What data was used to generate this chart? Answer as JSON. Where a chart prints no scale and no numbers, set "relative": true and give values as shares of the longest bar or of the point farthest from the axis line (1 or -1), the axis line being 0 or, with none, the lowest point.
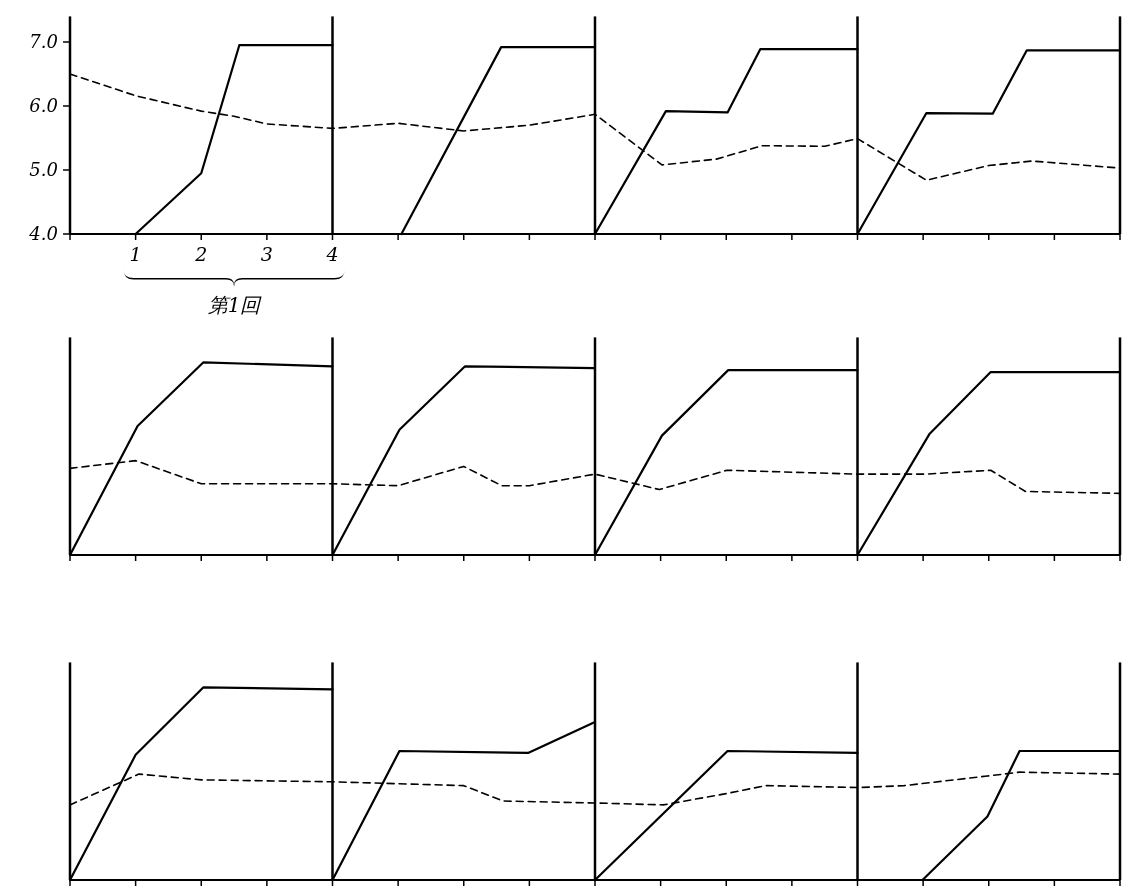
{
  "chart_data": [
    {
      "type": "line",
      "xlim": [
        0,
        16
      ],
      "xticks": [
        {
          "value": 0,
          "label": null
        },
        1,
        2,
        3,
        4,
        {
          "value": 5,
          "label": null
        },
        {
          "value": 6,
          "label": null
        },
        {
          "value": 7,
          "label": null
        },
        {
          "value": 8,
          "label": null
        },
        {
          "value": 9,
          "label": null
        },
        {
          "value": 10,
          "label": null
        },
        {
          "value": 11,
          "label": null
        },
        {
          "value": 12,
          "label": null
        },
        {
          "value": 13,
          "label": null
        },
        {
          "value": 14,
          "label": null
        },
        {
          "value": 15,
          "label": null
        },
        {
          "value": 16,
          "label": null
        }
      ],
      "xlabel": "第1回",
      "ylim": [
        4,
        7.4
      ],
      "yticks": [
        {
          "value": 4,
          "label": "4.0"
        },
        {
          "value": 5,
          "label": "5.0"
        },
        {
          "value": 6,
          "label": "6.0"
        },
        {
          "value": 7,
          "label": "7.0"
        }
      ],
      "ref_lines": [
        {
          "axis": "x",
          "value": 4
        },
        {
          "axis": "x",
          "value": 8
        },
        {
          "axis": "x",
          "value": 12
        }
      ],
      "series": [
        {
          "color": "#000000",
          "line_style": "solid",
          "x": [
            1,
            2,
            2.58,
            4
          ],
          "values": [
            4.0,
            4.95,
            6.95,
            6.95
          ]
        },
        {
          "color": "#000000",
          "line_style": "solid",
          "x": [
            5.05,
            6.57,
            8
          ],
          "values": [
            4.0,
            6.92,
            6.92
          ]
        },
        {
          "color": "#000000",
          "line_style": "solid",
          "x": [
            8,
            9.08,
            10.02,
            10.52,
            12
          ],
          "values": [
            4.0,
            5.92,
            5.9,
            6.89,
            6.89
          ]
        },
        {
          "color": "#000000",
          "line_style": "solid",
          "x": [
            12,
            13.05,
            14.06,
            14.58,
            16
          ],
          "values": [
            4.0,
            5.89,
            5.88,
            6.87,
            6.87
          ]
        },
        {
          "color": "#000000",
          "line_style": "dashed",
          "x": [
            0,
            1,
            2,
            2.5,
            3,
            4,
            5,
            6,
            7,
            8,
            9.02,
            9.85,
            10.55,
            11.5,
            12,
            13.05,
            14,
            14.66,
            16
          ],
          "values": [
            6.5,
            6.16,
            5.92,
            5.84,
            5.72,
            5.65,
            5.73,
            5.61,
            5.7,
            5.87,
            5.08,
            5.17,
            5.38,
            5.37,
            5.49,
            4.84,
            5.07,
            5.14,
            5.03
          ]
        }
      ]
    },
    {
      "type": "line",
      "relative": true,
      "xlim": [
        0,
        16
      ],
      "xticks": [
        0,
        1,
        2,
        3,
        4,
        5,
        6,
        7,
        8,
        9,
        10,
        11,
        12,
        13,
        14,
        15,
        16
      ],
      "tick_labels": false,
      "ref_lines": [
        {
          "axis": "x",
          "value": 4
        },
        {
          "axis": "x",
          "value": 8
        },
        {
          "axis": "x",
          "value": 12
        }
      ],
      "series": [
        {
          "color": "#000000",
          "line_style": "solid",
          "x": [
            0,
            1.03,
            2.03,
            4
          ],
          "values": [
            0,
            0.67,
            1.0,
            0.98
          ]
        },
        {
          "color": "#000000",
          "line_style": "solid",
          "x": [
            4,
            5.02,
            6.02,
            8
          ],
          "values": [
            0,
            0.65,
            0.98,
            0.97
          ]
        },
        {
          "color": "#000000",
          "line_style": "solid",
          "x": [
            8,
            9.02,
            10.03,
            12
          ],
          "values": [
            0,
            0.62,
            0.96,
            0.96
          ]
        },
        {
          "color": "#000000",
          "line_style": "solid",
          "x": [
            12,
            13.1,
            14.03,
            16
          ],
          "values": [
            0,
            0.63,
            0.95,
            0.95
          ]
        },
        {
          "color": "#000000",
          "line_style": "dashed",
          "x": [
            0,
            1,
            2,
            4,
            5,
            6,
            6.58,
            7,
            8,
            8.98,
            10.01,
            12,
            13.04,
            14.03,
            14.56,
            16
          ],
          "values": [
            0.45,
            0.49,
            0.37,
            0.37,
            0.36,
            0.46,
            0.36,
            0.36,
            0.42,
            0.34,
            0.44,
            0.42,
            0.42,
            0.44,
            0.33,
            0.32
          ]
        }
      ]
    },
    {
      "type": "line",
      "relative": true,
      "xlim": [
        0,
        16
      ],
      "xticks": [
        0,
        1,
        2,
        3,
        4,
        5,
        6,
        7,
        8,
        9,
        10,
        11,
        12,
        13,
        14,
        15,
        16
      ],
      "tick_labels": false,
      "ref_lines": [
        {
          "axis": "x",
          "value": 4
        },
        {
          "axis": "x",
          "value": 8
        },
        {
          "axis": "x",
          "value": 12
        }
      ],
      "series": [
        {
          "color": "#000000",
          "line_style": "solid",
          "x": [
            0,
            1,
            2.03,
            4
          ],
          "values": [
            0,
            0.65,
            1.0,
            0.99
          ]
        },
        {
          "color": "#000000",
          "line_style": "solid",
          "x": [
            4,
            5.02,
            6.98,
            8
          ],
          "values": [
            0,
            0.67,
            0.66,
            0.82
          ]
        },
        {
          "color": "#000000",
          "line_style": "solid",
          "x": [
            8,
            10.02,
            12
          ],
          "values": [
            0,
            0.67,
            0.66
          ]
        },
        {
          "color": "#000000",
          "line_style": "solid",
          "x": [
            12.99,
            13.98,
            14.47,
            16
          ],
          "values": [
            0,
            0.33,
            0.67,
            0.67
          ]
        },
        {
          "color": "#000000",
          "line_style": "dashed",
          "x": [
            0,
            1.05,
            2,
            4,
            5,
            6,
            6.6,
            8,
            9.04,
            10.02,
            10.6,
            12,
            12.71,
            13.98,
            14.47,
            16
          ],
          "values": [
            0.39,
            0.55,
            0.52,
            0.51,
            0.5,
            0.49,
            0.41,
            0.4,
            0.39,
            0.45,
            0.49,
            0.48,
            0.49,
            0.54,
            0.56,
            0.55
          ]
        }
      ]
    }
  ]
}
